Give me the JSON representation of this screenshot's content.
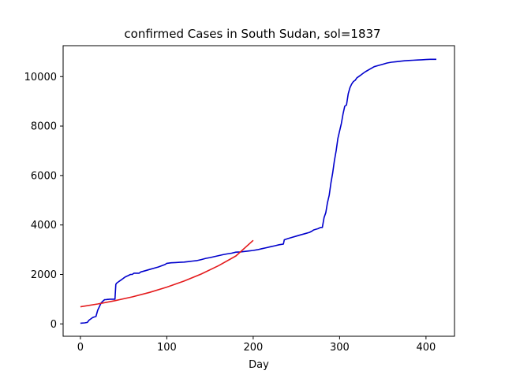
{
  "chart_data": {
    "type": "line",
    "title": "confirmed Cases in South Sudan, sol=1837",
    "xlabel": "Day",
    "ylabel": "",
    "xlim": [
      -20,
      433
    ],
    "ylim": [
      -500,
      11250
    ],
    "xticks": [
      0,
      100,
      200,
      300,
      400
    ],
    "yticks": [
      0,
      2000,
      4000,
      6000,
      8000,
      10000
    ],
    "grid": false,
    "colors": {
      "confirmed": "#0000cc",
      "fit": "#e41a1c"
    },
    "series": [
      {
        "key": "confirmed",
        "x": [
          0,
          5,
          8,
          10,
          12,
          14,
          16,
          18,
          20,
          22,
          24,
          26,
          28,
          30,
          31,
          32,
          34,
          36,
          38,
          40,
          41,
          42,
          44,
          46,
          48,
          50,
          52,
          55,
          58,
          60,
          62,
          65,
          68,
          70,
          75,
          80,
          85,
          90,
          94,
          98,
          100,
          105,
          110,
          115,
          120,
          125,
          130,
          135,
          140,
          145,
          150,
          155,
          160,
          165,
          170,
          175,
          180,
          185,
          190,
          195,
          200,
          205,
          210,
          215,
          220,
          225,
          230,
          235,
          236,
          240,
          245,
          250,
          255,
          260,
          265,
          268,
          270,
          275,
          278,
          280,
          282,
          284,
          286,
          288,
          290,
          292,
          294,
          296,
          298,
          300,
          302,
          304,
          306,
          308,
          310,
          312,
          314,
          316,
          318,
          320,
          322,
          324,
          326,
          328,
          330,
          335,
          340,
          345,
          350,
          355,
          360,
          365,
          370,
          375,
          380,
          385,
          390,
          395,
          400,
          405,
          410,
          412
        ],
        "y": [
          30,
          40,
          60,
          150,
          200,
          250,
          280,
          300,
          550,
          700,
          850,
          920,
          980,
          980,
          990,
          990,
          1000,
          1000,
          1000,
          1000,
          1600,
          1650,
          1700,
          1750,
          1800,
          1850,
          1900,
          1950,
          2000,
          2000,
          2050,
          2050,
          2050,
          2100,
          2150,
          2200,
          2250,
          2300,
          2350,
          2400,
          2450,
          2470,
          2480,
          2490,
          2500,
          2520,
          2540,
          2560,
          2600,
          2650,
          2680,
          2720,
          2760,
          2800,
          2830,
          2860,
          2900,
          2910,
          2930,
          2950,
          2970,
          3000,
          3040,
          3080,
          3120,
          3160,
          3200,
          3230,
          3400,
          3450,
          3500,
          3550,
          3600,
          3650,
          3700,
          3750,
          3800,
          3850,
          3900,
          3900,
          4300,
          4500,
          4900,
          5200,
          5700,
          6100,
          6600,
          7000,
          7500,
          7800,
          8100,
          8500,
          8800,
          8850,
          9300,
          9550,
          9700,
          9800,
          9850,
          9950,
          10000,
          10050,
          10100,
          10150,
          10200,
          10300,
          10400,
          10450,
          10500,
          10550,
          10580,
          10600,
          10620,
          10640,
          10650,
          10660,
          10670,
          10680,
          10690,
          10700,
          10700,
          10700
        ]
      },
      {
        "key": "fit",
        "x": [
          0,
          20,
          40,
          60,
          80,
          100,
          120,
          140,
          160,
          180,
          200
        ],
        "y": [
          690,
          804,
          938,
          1093,
          1275,
          1486,
          1733,
          2020,
          2356,
          2747,
          3380
        ]
      }
    ]
  }
}
